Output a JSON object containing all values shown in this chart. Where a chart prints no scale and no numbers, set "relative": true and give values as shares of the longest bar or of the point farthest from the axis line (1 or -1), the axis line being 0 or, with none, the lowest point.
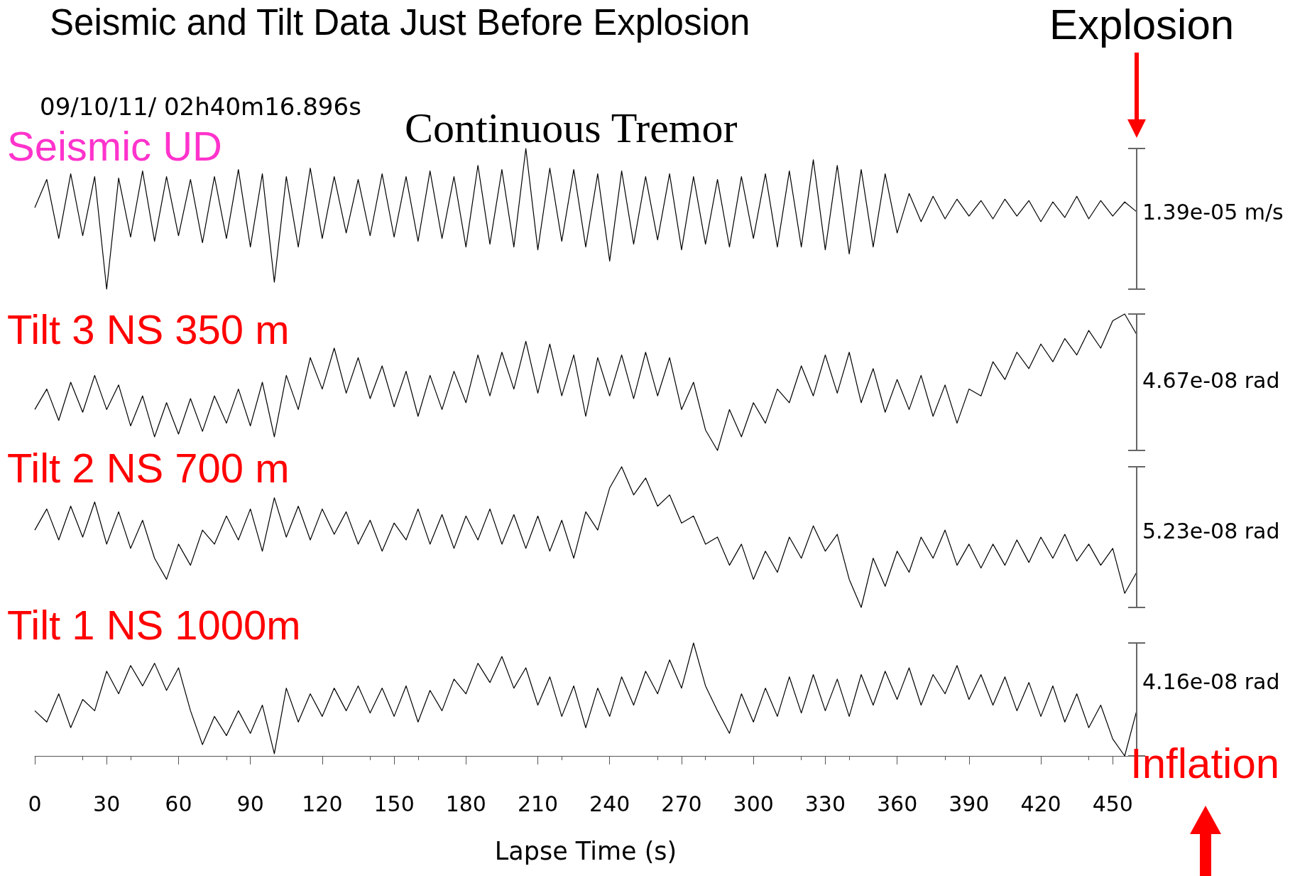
{
  "chart_data": [
    {
      "type": "line",
      "title": "Seismic and Tilt Data Just Before Explosion",
      "relative": true,
      "tick_labels": false,
      "xlim": [
        0,
        460
      ],
      "x": [
        0,
        5,
        10,
        15,
        20,
        25,
        30,
        35,
        40,
        45,
        50,
        55,
        60,
        65,
        70,
        75,
        80,
        85,
        90,
        95,
        100,
        105,
        110,
        115,
        120,
        125,
        130,
        135,
        140,
        145,
        150,
        155,
        160,
        165,
        170,
        175,
        180,
        185,
        190,
        195,
        200,
        205,
        210,
        215,
        220,
        225,
        230,
        235,
        240,
        245,
        250,
        255,
        260,
        265,
        270,
        275,
        280,
        285,
        290,
        295,
        300,
        305,
        310,
        315,
        320,
        325,
        330,
        335,
        340,
        345,
        350,
        355,
        360,
        365,
        370,
        375,
        380,
        385,
        390,
        395,
        400,
        405,
        410,
        415,
        420,
        425,
        430,
        435,
        440,
        445,
        450,
        455,
        460
      ],
      "annotations": [
        "09/10/11/ 02h40m16.896s",
        "Continuous Tremor",
        "1.39e-05 m/s",
        "Explosion"
      ],
      "series": [
        {
          "name": "Seismic UD",
          "color": "#000000",
          "values": [
            0.58,
            0.78,
            0.36,
            0.82,
            0.38,
            0.8,
            0.0,
            0.79,
            0.37,
            0.84,
            0.34,
            0.8,
            0.38,
            0.78,
            0.33,
            0.8,
            0.36,
            0.85,
            0.3,
            0.82,
            0.05,
            0.8,
            0.3,
            0.86,
            0.36,
            0.8,
            0.4,
            0.78,
            0.38,
            0.82,
            0.37,
            0.8,
            0.34,
            0.84,
            0.36,
            0.8,
            0.3,
            0.88,
            0.32,
            0.85,
            0.3,
            1.0,
            0.28,
            0.86,
            0.34,
            0.85,
            0.3,
            0.82,
            0.2,
            0.84,
            0.32,
            0.8,
            0.35,
            0.82,
            0.28,
            0.8,
            0.32,
            0.78,
            0.3,
            0.8,
            0.36,
            0.82,
            0.3,
            0.84,
            0.3,
            0.92,
            0.28,
            0.88,
            0.25,
            0.85,
            0.3,
            0.82,
            0.4,
            0.68,
            0.48,
            0.66,
            0.5,
            0.64,
            0.52,
            0.63,
            0.5,
            0.64,
            0.52,
            0.63,
            0.48,
            0.62,
            0.51,
            0.66,
            0.5,
            0.63,
            0.52,
            0.62,
            0.55
          ]
        }
      ]
    },
    {
      "type": "line",
      "relative": true,
      "tick_labels": false,
      "xlim": [
        0,
        460
      ],
      "x": [
        0,
        5,
        10,
        15,
        20,
        25,
        30,
        35,
        40,
        45,
        50,
        55,
        60,
        65,
        70,
        75,
        80,
        85,
        90,
        95,
        100,
        105,
        110,
        115,
        120,
        125,
        130,
        135,
        140,
        145,
        150,
        155,
        160,
        165,
        170,
        175,
        180,
        185,
        190,
        195,
        200,
        205,
        210,
        215,
        220,
        225,
        230,
        235,
        240,
        245,
        250,
        255,
        260,
        265,
        270,
        275,
        280,
        285,
        290,
        295,
        300,
        305,
        310,
        315,
        320,
        325,
        330,
        335,
        340,
        345,
        350,
        355,
        360,
        365,
        370,
        375,
        380,
        385,
        390,
        395,
        400,
        405,
        410,
        415,
        420,
        425,
        430,
        435,
        440,
        445,
        450,
        455,
        460
      ],
      "annotations": [
        "4.67e-08  rad"
      ],
      "series": [
        {
          "name": "Tilt 3 NS  350 m",
          "color": "#000000",
          "values": [
            0.3,
            0.45,
            0.22,
            0.5,
            0.28,
            0.55,
            0.3,
            0.48,
            0.18,
            0.4,
            0.1,
            0.35,
            0.12,
            0.38,
            0.14,
            0.4,
            0.2,
            0.45,
            0.18,
            0.5,
            0.1,
            0.55,
            0.3,
            0.68,
            0.45,
            0.75,
            0.42,
            0.68,
            0.38,
            0.62,
            0.32,
            0.58,
            0.25,
            0.55,
            0.3,
            0.58,
            0.35,
            0.7,
            0.4,
            0.72,
            0.45,
            0.8,
            0.42,
            0.78,
            0.4,
            0.7,
            0.25,
            0.68,
            0.4,
            0.7,
            0.38,
            0.72,
            0.4,
            0.68,
            0.3,
            0.5,
            0.15,
            0.0,
            0.3,
            0.1,
            0.35,
            0.2,
            0.45,
            0.35,
            0.62,
            0.4,
            0.7,
            0.42,
            0.72,
            0.35,
            0.6,
            0.28,
            0.52,
            0.3,
            0.55,
            0.25,
            0.48,
            0.2,
            0.45,
            0.4,
            0.65,
            0.52,
            0.72,
            0.6,
            0.78,
            0.65,
            0.82,
            0.7,
            0.88,
            0.75,
            0.95,
            1.0,
            0.85
          ]
        }
      ]
    },
    {
      "type": "line",
      "relative": true,
      "tick_labels": false,
      "xlim": [
        0,
        460
      ],
      "x": [
        0,
        5,
        10,
        15,
        20,
        25,
        30,
        35,
        40,
        45,
        50,
        55,
        60,
        65,
        70,
        75,
        80,
        85,
        90,
        95,
        100,
        105,
        110,
        115,
        120,
        125,
        130,
        135,
        140,
        145,
        150,
        155,
        160,
        165,
        170,
        175,
        180,
        185,
        190,
        195,
        200,
        205,
        210,
        215,
        220,
        225,
        230,
        235,
        240,
        245,
        250,
        255,
        260,
        265,
        270,
        275,
        280,
        285,
        290,
        295,
        300,
        305,
        310,
        315,
        320,
        325,
        330,
        335,
        340,
        345,
        350,
        355,
        360,
        365,
        370,
        375,
        380,
        385,
        390,
        395,
        400,
        405,
        410,
        415,
        420,
        425,
        430,
        435,
        440,
        445,
        450,
        455,
        460
      ],
      "annotations": [
        "5.23e-08 rad"
      ],
      "series": [
        {
          "name": "Tilt 2 NS  700 m",
          "color": "#000000",
          "values": [
            0.55,
            0.7,
            0.48,
            0.72,
            0.5,
            0.75,
            0.45,
            0.68,
            0.42,
            0.62,
            0.35,
            0.2,
            0.45,
            0.3,
            0.55,
            0.45,
            0.65,
            0.48,
            0.7,
            0.4,
            0.78,
            0.5,
            0.72,
            0.48,
            0.7,
            0.52,
            0.68,
            0.45,
            0.62,
            0.4,
            0.6,
            0.48,
            0.7,
            0.45,
            0.66,
            0.42,
            0.65,
            0.48,
            0.7,
            0.45,
            0.66,
            0.42,
            0.65,
            0.4,
            0.62,
            0.35,
            0.68,
            0.55,
            0.85,
            1.0,
            0.8,
            0.92,
            0.72,
            0.8,
            0.6,
            0.65,
            0.45,
            0.5,
            0.3,
            0.45,
            0.2,
            0.4,
            0.25,
            0.5,
            0.35,
            0.58,
            0.4,
            0.52,
            0.2,
            0.0,
            0.35,
            0.15,
            0.4,
            0.25,
            0.5,
            0.35,
            0.55,
            0.3,
            0.45,
            0.28,
            0.45,
            0.3,
            0.48,
            0.32,
            0.5,
            0.35,
            0.52,
            0.33,
            0.45,
            0.3,
            0.42,
            0.1,
            0.25
          ]
        }
      ]
    },
    {
      "type": "line",
      "relative": true,
      "xlim": [
        0,
        460
      ],
      "xticks": [
        0,
        30,
        60,
        90,
        120,
        150,
        180,
        210,
        240,
        270,
        300,
        330,
        360,
        390,
        420,
        450
      ],
      "xlabel": "Lapse Time (s)",
      "x": [
        0,
        5,
        10,
        15,
        20,
        25,
        30,
        35,
        40,
        45,
        50,
        55,
        60,
        65,
        70,
        75,
        80,
        85,
        90,
        95,
        100,
        105,
        110,
        115,
        120,
        125,
        130,
        135,
        140,
        145,
        150,
        155,
        160,
        165,
        170,
        175,
        180,
        185,
        190,
        195,
        200,
        205,
        210,
        215,
        220,
        225,
        230,
        235,
        240,
        245,
        250,
        255,
        260,
        265,
        270,
        275,
        280,
        285,
        290,
        295,
        300,
        305,
        310,
        315,
        320,
        325,
        330,
        335,
        340,
        345,
        350,
        355,
        360,
        365,
        370,
        375,
        380,
        385,
        390,
        395,
        400,
        405,
        410,
        415,
        420,
        425,
        430,
        435,
        440,
        445,
        450,
        455,
        460
      ],
      "annotations": [
        "4.16e-08 rad",
        "Inflation"
      ],
      "series": [
        {
          "name": "Tilt 1 NS 1000m",
          "color": "#000000",
          "values": [
            0.4,
            0.3,
            0.55,
            0.25,
            0.5,
            0.4,
            0.75,
            0.55,
            0.8,
            0.62,
            0.82,
            0.58,
            0.78,
            0.4,
            0.1,
            0.35,
            0.18,
            0.4,
            0.2,
            0.45,
            0.02,
            0.6,
            0.3,
            0.55,
            0.35,
            0.6,
            0.4,
            0.62,
            0.38,
            0.6,
            0.35,
            0.62,
            0.3,
            0.58,
            0.4,
            0.68,
            0.55,
            0.82,
            0.65,
            0.88,
            0.6,
            0.78,
            0.45,
            0.7,
            0.35,
            0.62,
            0.25,
            0.6,
            0.35,
            0.7,
            0.45,
            0.75,
            0.55,
            0.85,
            0.6,
            1.0,
            0.62,
            0.4,
            0.2,
            0.55,
            0.3,
            0.6,
            0.35,
            0.7,
            0.38,
            0.72,
            0.4,
            0.68,
            0.35,
            0.72,
            0.45,
            0.75,
            0.5,
            0.78,
            0.45,
            0.72,
            0.55,
            0.8,
            0.5,
            0.72,
            0.45,
            0.7,
            0.4,
            0.65,
            0.35,
            0.62,
            0.3,
            0.55,
            0.25,
            0.45,
            0.15,
            0.0,
            0.4
          ]
        }
      ]
    }
  ]
}
